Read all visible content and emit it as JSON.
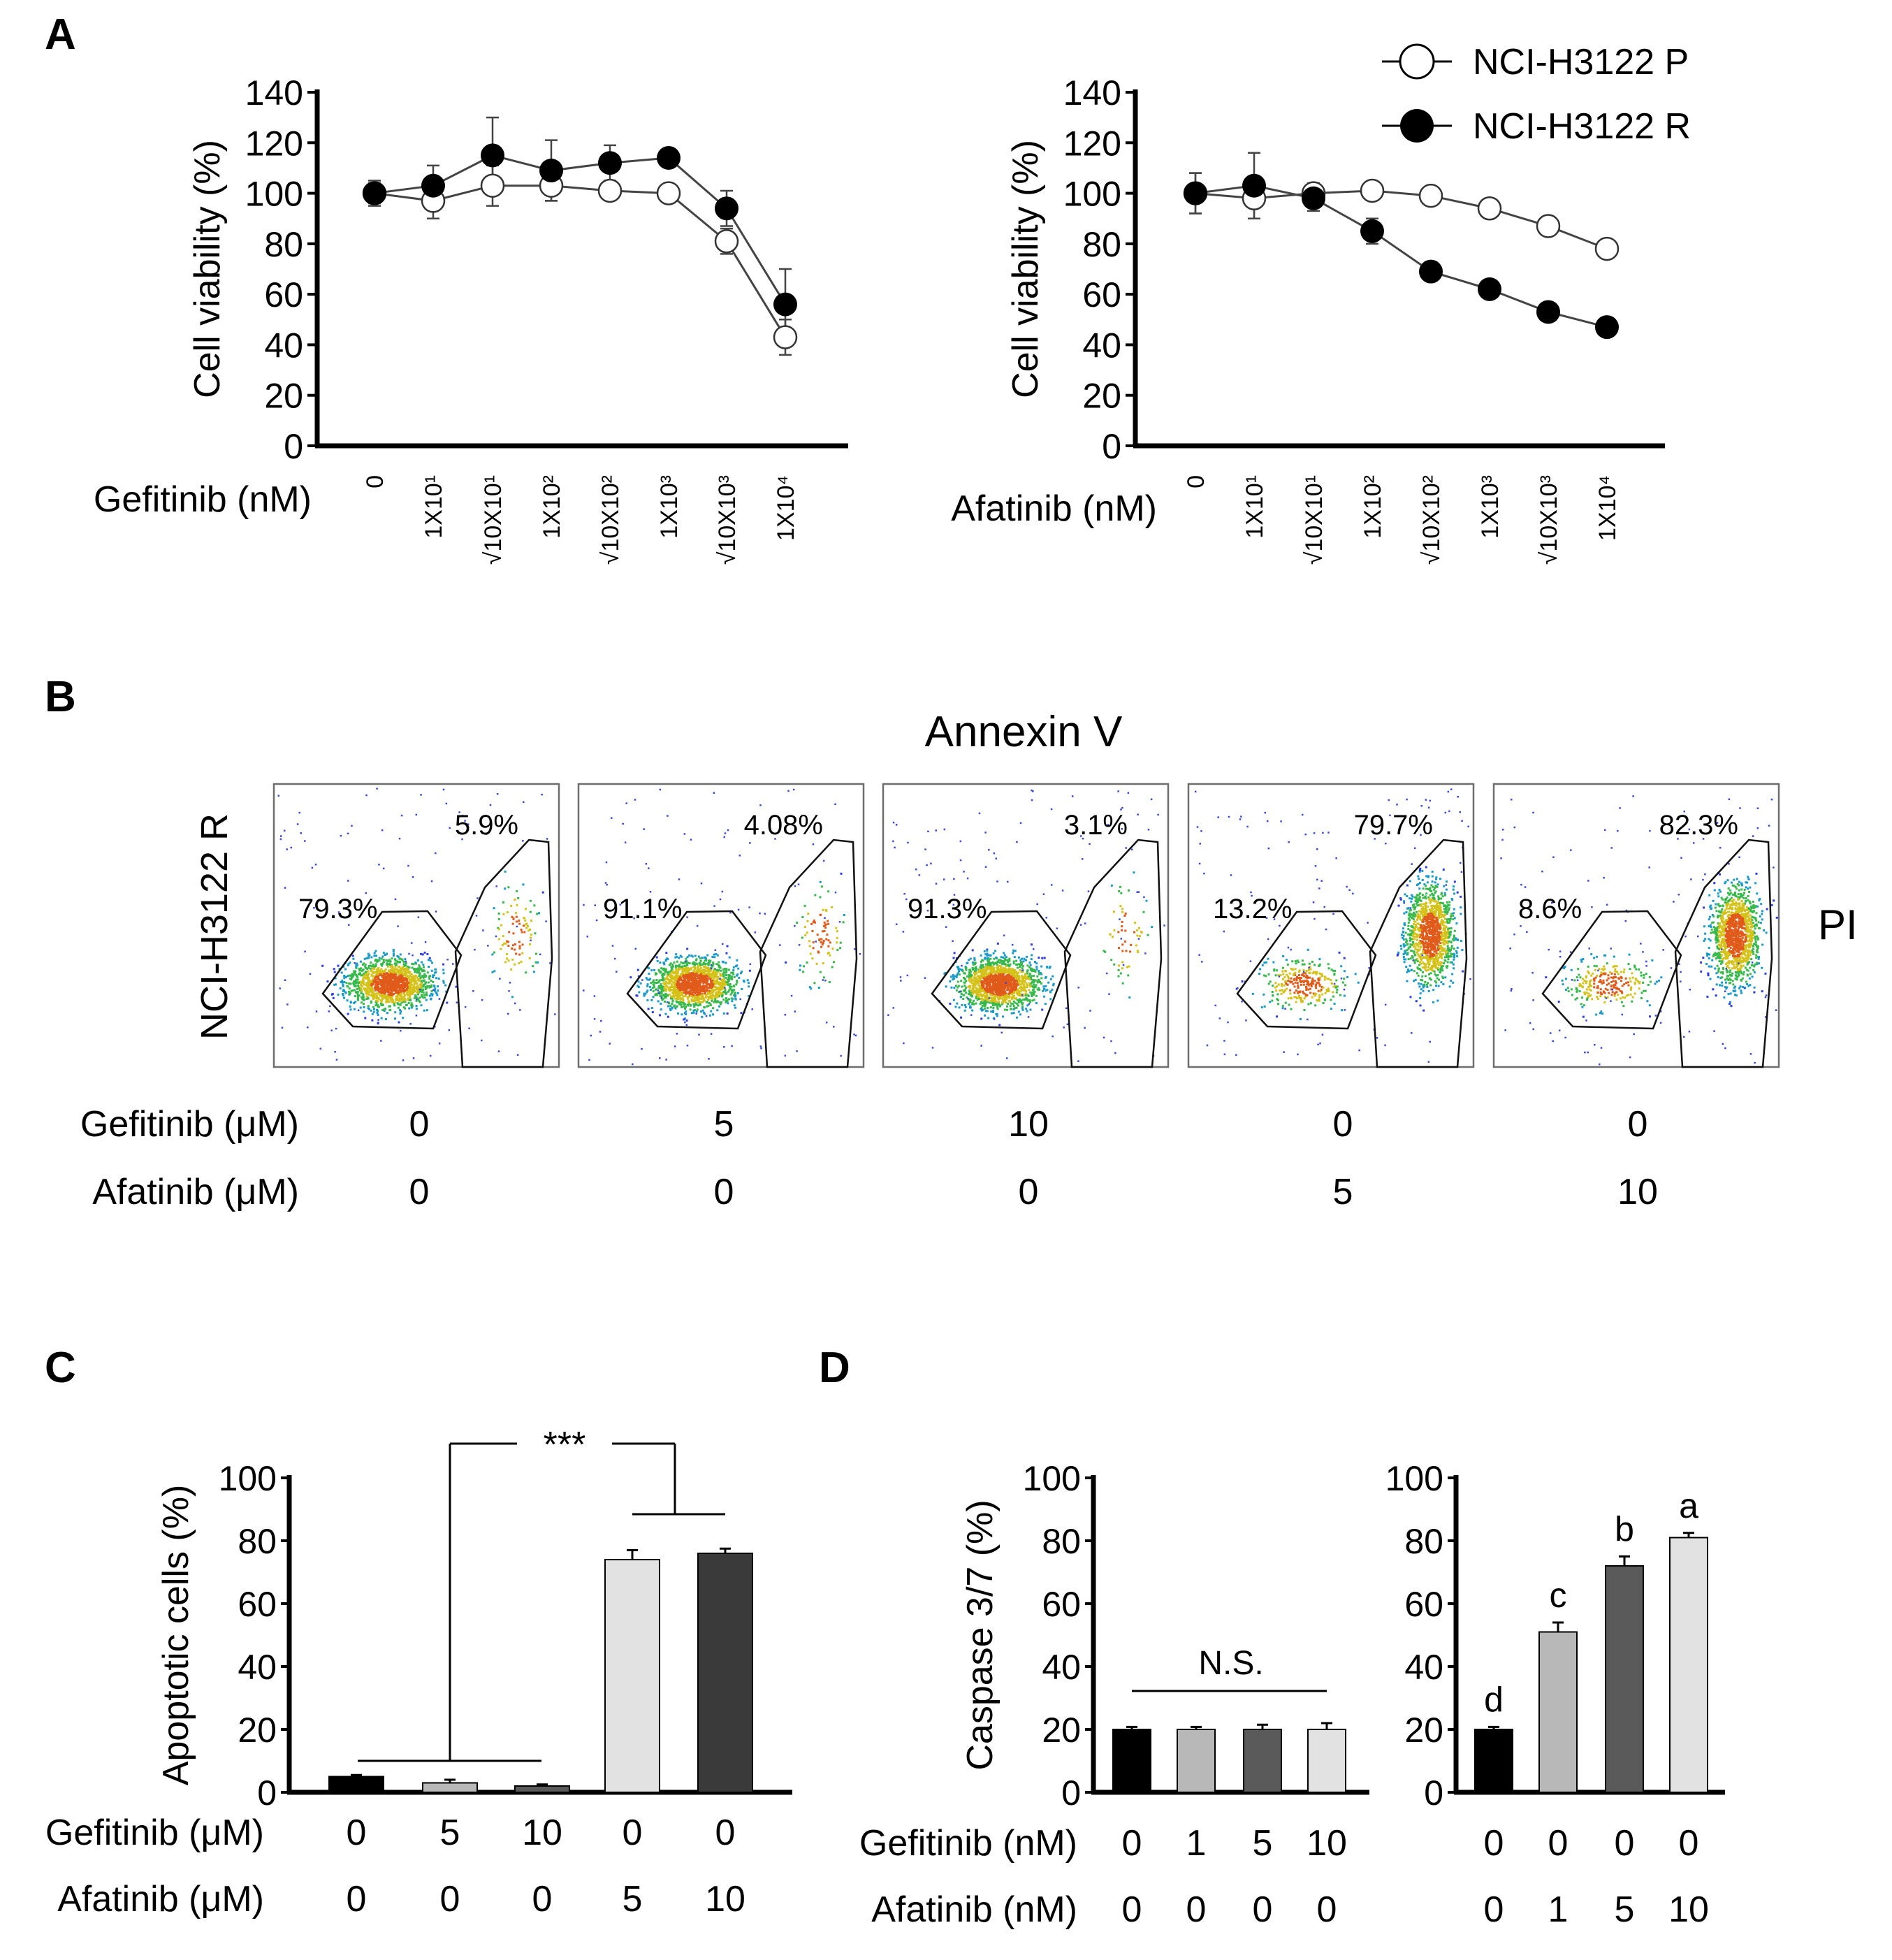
{
  "panels": {
    "A": "A",
    "B": "B",
    "C": "C",
    "D": "D"
  },
  "legend": {
    "parental": "NCI-H3122 P",
    "resistant": "NCI-H3122 R"
  },
  "chart_data": [
    {
      "id": "A-left",
      "type": "line",
      "title": "",
      "ylabel": "Cell viability (%)",
      "xlabel": "Gefitinib (nM)",
      "ylim": [
        0,
        140
      ],
      "yticks": [
        "0",
        "20",
        "40",
        "60",
        "80",
        "100",
        "120",
        "140"
      ],
      "categories": [
        "0",
        "1X10¹",
        "√10X10¹",
        "1X10²",
        "√10X10²",
        "1X10³",
        "√10X10³",
        "1X10⁴"
      ],
      "series": [
        {
          "name": "NCI-H3122 P",
          "marker": "open",
          "values": [
            100,
            97,
            103,
            103,
            101,
            100,
            81,
            43
          ],
          "errors": [
            4,
            7,
            8,
            6,
            3,
            2,
            5,
            7
          ]
        },
        {
          "name": "NCI-H3122 R",
          "marker": "filled",
          "values": [
            100,
            103,
            115,
            109,
            112,
            114,
            94,
            56
          ],
          "errors": [
            5,
            8,
            15,
            12,
            7,
            2,
            7,
            14
          ]
        }
      ]
    },
    {
      "id": "A-right",
      "type": "line",
      "title": "",
      "ylabel": "Cell viability (%)",
      "xlabel": "Afatinib (nM)",
      "ylim": [
        0,
        140
      ],
      "yticks": [
        "0",
        "20",
        "40",
        "60",
        "80",
        "100",
        "120",
        "140"
      ],
      "categories": [
        "0",
        "1X10¹",
        "√10X10¹",
        "1X10²",
        "√10X10²",
        "1X10³",
        "√10X10³",
        "1X10⁴"
      ],
      "series": [
        {
          "name": "NCI-H3122 P",
          "marker": "open",
          "values": [
            100,
            98,
            100,
            101,
            99,
            94,
            87,
            78
          ],
          "errors": [
            8,
            8,
            4,
            2,
            2,
            2,
            2,
            2
          ]
        },
        {
          "name": "NCI-H3122 R",
          "marker": "filled",
          "values": [
            100,
            103,
            98,
            85,
            69,
            62,
            53,
            47
          ],
          "errors": [
            8,
            13,
            5,
            5,
            2,
            2,
            2,
            2
          ]
        }
      ]
    },
    {
      "id": "B",
      "type": "scatter",
      "title": "Annexin V",
      "row_label": "NCI-H3122 R",
      "side_label": "PI",
      "plots": [
        {
          "gefitinib": "0",
          "afatinib": "0",
          "live_pct": "79.3%",
          "apoptotic_pct": "5.9%",
          "apoptotic_fraction": 0.059
        },
        {
          "gefitinib": "5",
          "afatinib": "0",
          "live_pct": "91.1%",
          "apoptotic_pct": "4.08%",
          "apoptotic_fraction": 0.0408
        },
        {
          "gefitinib": "10",
          "afatinib": "0",
          "live_pct": "91.3%",
          "apoptotic_pct": "3.1%",
          "apoptotic_fraction": 0.031
        },
        {
          "gefitinib": "0",
          "afatinib": "5",
          "live_pct": "13.2%",
          "apoptotic_pct": "79.7%",
          "apoptotic_fraction": 0.797
        },
        {
          "gefitinib": "0",
          "afatinib": "10",
          "live_pct": "8.6%",
          "apoptotic_pct": "82.3%",
          "apoptotic_fraction": 0.823
        }
      ],
      "row_labels": [
        "Gefitinib (μM)",
        "Afatinib (μM)"
      ]
    },
    {
      "id": "C",
      "type": "bar",
      "ylabel": "Apoptotic cells (%)",
      "ylim": [
        0,
        100
      ],
      "yticks": [
        "0",
        "20",
        "40",
        "60",
        "80",
        "100"
      ],
      "significance": "***",
      "row_labels": [
        "Gefitinib (μM)",
        "Afatinib (μM)"
      ],
      "gefitinib": [
        "0",
        "5",
        "10",
        "0",
        "0"
      ],
      "afatinib": [
        "0",
        "0",
        "0",
        "5",
        "10"
      ],
      "values": [
        5,
        3,
        2,
        74,
        76
      ],
      "errors": [
        0.5,
        1,
        0.5,
        3,
        1.5
      ],
      "colors": [
        "#000000",
        "#b8b8b8",
        "#5a5a5a",
        "#e2e2e2",
        "#3a3a3a"
      ]
    },
    {
      "id": "D-left",
      "type": "bar",
      "ylabel": "Caspase 3/7 (%)",
      "ylim": [
        0,
        100
      ],
      "yticks": [
        "0",
        "20",
        "40",
        "60",
        "80",
        "100"
      ],
      "annotation": "N.S.",
      "row_labels": [
        "Gefitinib (nM)",
        "Afatinib (nM)"
      ],
      "gefitinib": [
        "0",
        "1",
        "5",
        "10"
      ],
      "afatinib": [
        "0",
        "0",
        "0",
        "0"
      ],
      "values": [
        20,
        20,
        20,
        20
      ],
      "errors": [
        0.8,
        0.8,
        1.5,
        2
      ],
      "colors": [
        "#000000",
        "#b8b8b8",
        "#5a5a5a",
        "#e2e2e2"
      ]
    },
    {
      "id": "D-right",
      "type": "bar",
      "ylabel": "",
      "ylim": [
        0,
        100
      ],
      "yticks": [
        "0",
        "20",
        "40",
        "60",
        "80",
        "100"
      ],
      "gefitinib": [
        "0",
        "0",
        "0",
        "0"
      ],
      "afatinib": [
        "0",
        "1",
        "5",
        "10"
      ],
      "values": [
        20,
        51,
        72,
        81
      ],
      "errors": [
        0.8,
        3,
        3,
        1.5
      ],
      "letters": [
        "d",
        "c",
        "b",
        "a"
      ],
      "colors": [
        "#000000",
        "#b8b8b8",
        "#5a5a5a",
        "#e2e2e2"
      ]
    }
  ]
}
